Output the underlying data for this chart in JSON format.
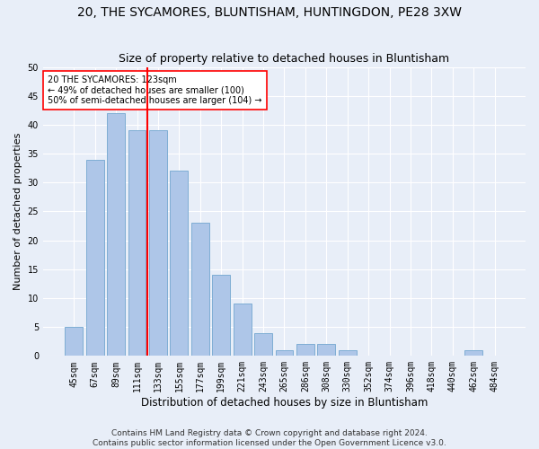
{
  "title": "20, THE SYCAMORES, BLUNTISHAM, HUNTINGDON, PE28 3XW",
  "subtitle": "Size of property relative to detached houses in Bluntisham",
  "xlabel": "Distribution of detached houses by size in Bluntisham",
  "ylabel": "Number of detached properties",
  "bar_labels": [
    "45sqm",
    "67sqm",
    "89sqm",
    "111sqm",
    "133sqm",
    "155sqm",
    "177sqm",
    "199sqm",
    "221sqm",
    "243sqm",
    "265sqm",
    "286sqm",
    "308sqm",
    "330sqm",
    "352sqm",
    "374sqm",
    "396sqm",
    "418sqm",
    "440sqm",
    "462sqm",
    "484sqm"
  ],
  "bar_values": [
    5,
    34,
    42,
    39,
    39,
    32,
    23,
    14,
    9,
    4,
    1,
    2,
    2,
    1,
    0,
    0,
    0,
    0,
    0,
    1,
    0
  ],
  "bar_color": "#aec6e8",
  "bar_edge_color": "#7eadd4",
  "vline_pos": 3.5,
  "vline_color": "red",
  "annotation_text": "20 THE SYCAMORES: 123sqm\n← 49% of detached houses are smaller (100)\n50% of semi-detached houses are larger (104) →",
  "annotation_box_color": "white",
  "annotation_box_edge": "red",
  "ylim": [
    0,
    50
  ],
  "yticks": [
    0,
    5,
    10,
    15,
    20,
    25,
    30,
    35,
    40,
    45,
    50
  ],
  "footer": "Contains HM Land Registry data © Crown copyright and database right 2024.\nContains public sector information licensed under the Open Government Licence v3.0.",
  "bg_color": "#e8eef8",
  "grid_color": "#ffffff",
  "title_fontsize": 10,
  "subtitle_fontsize": 9,
  "ylabel_fontsize": 8,
  "xlabel_fontsize": 8.5,
  "tick_fontsize": 7,
  "annotation_fontsize": 7,
  "footer_fontsize": 6.5
}
